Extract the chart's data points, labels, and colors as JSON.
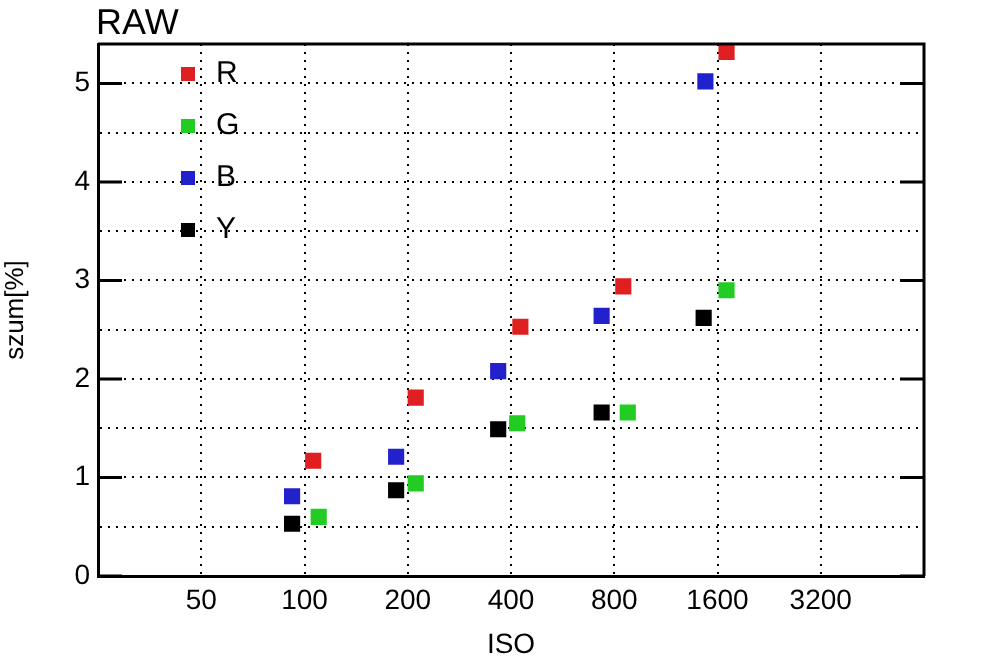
{
  "chart_data": {
    "type": "scatter",
    "title": "RAW",
    "xlabel": "ISO",
    "ylabel": "szum[%]",
    "log": "x",
    "xlim": [
      25,
      6400
    ],
    "xticks": [
      50,
      100,
      200,
      400,
      800,
      1600,
      3200
    ],
    "ylim": [
      0,
      5.4
    ],
    "yticks": [
      0,
      {
        "value": 0.5,
        "label": null
      },
      1,
      {
        "value": 1.5,
        "label": null
      },
      2,
      {
        "value": 2.5,
        "label": null
      },
      3,
      {
        "value": 3.5,
        "label": null
      },
      4,
      {
        "value": 4.5,
        "label": null
      },
      5
    ],
    "grid": true,
    "legend": "top left",
    "marker": "square",
    "series": [
      {
        "name": "R",
        "color": "#e02020",
        "x": [
          106,
          211,
          426,
          850,
          1700
        ],
        "values": [
          1.17,
          1.81,
          2.53,
          2.94,
          5.32
        ]
      },
      {
        "name": "G",
        "color": "#22cc22",
        "x": [
          110,
          211,
          417,
          876,
          1700
        ],
        "values": [
          0.6,
          0.94,
          1.55,
          1.66,
          2.9
        ]
      },
      {
        "name": "B",
        "color": "#2222cc",
        "x": [
          92,
          185,
          367,
          735,
          1475
        ],
        "values": [
          0.81,
          1.21,
          2.08,
          2.64,
          5.02
        ]
      },
      {
        "name": "Y",
        "color": "#000000",
        "x": [
          92,
          185,
          367,
          735,
          1458
        ],
        "values": [
          0.53,
          0.87,
          1.49,
          1.66,
          2.62
        ]
      }
    ]
  }
}
